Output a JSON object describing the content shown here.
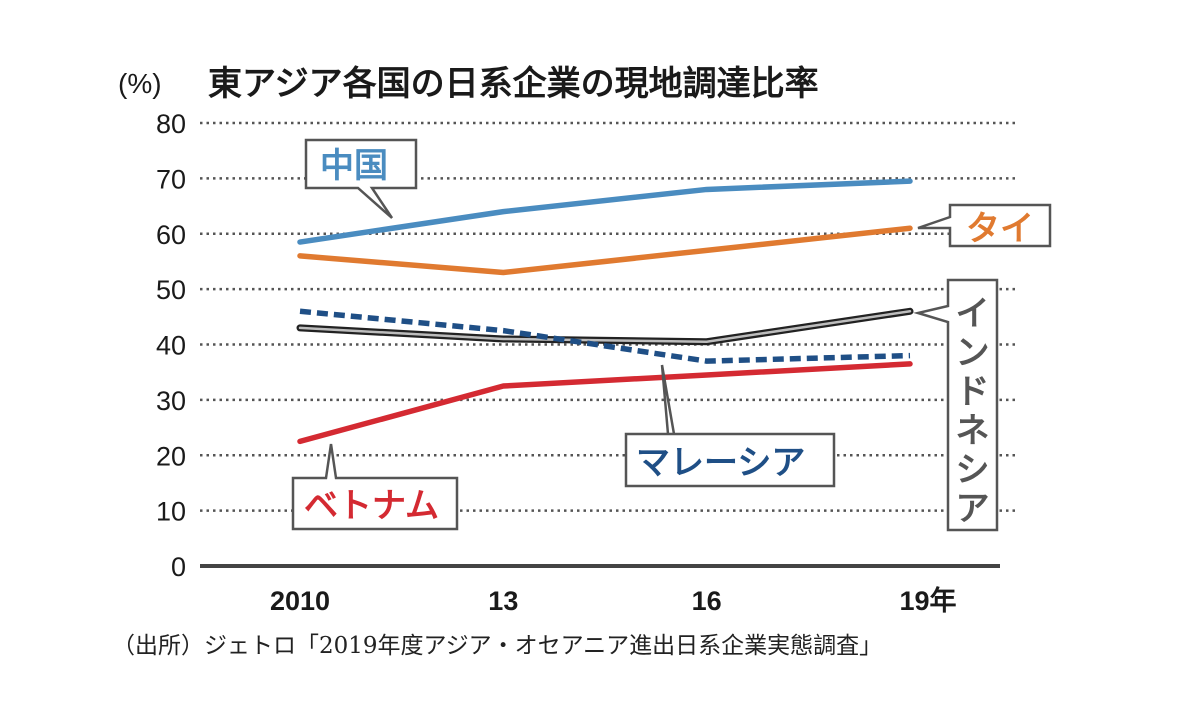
{
  "chart_data": {
    "type": "line",
    "title": "東アジア各国の日系企業の現地調達比率",
    "ylabel": "(%)",
    "xlabel": "",
    "ylim": [
      0,
      80
    ],
    "yticks": [
      0,
      10,
      20,
      30,
      40,
      50,
      60,
      70,
      80
    ],
    "ytick_labels": [
      "0",
      "10",
      "20",
      "30",
      "40",
      "50",
      "60",
      "70",
      "80"
    ],
    "x": [
      2010,
      2013,
      2016,
      2019
    ],
    "xtick_labels": [
      "2010",
      "13",
      "16",
      "19年"
    ],
    "grid": true,
    "grid_style": "dotted horizontal",
    "legend": "inline callouts",
    "series": [
      {
        "key": "china",
        "name": "中国",
        "color": "#4a8cc0",
        "style": "solid",
        "values": [
          58.5,
          64,
          68,
          69.5
        ]
      },
      {
        "key": "thailand",
        "name": "タイ",
        "color": "#e07a30",
        "style": "solid",
        "values": [
          56,
          53,
          57,
          61
        ]
      },
      {
        "key": "indonesia",
        "name": "インドネシア",
        "color": "#333333",
        "style": "outlined",
        "values": [
          43,
          41,
          40.5,
          46
        ]
      },
      {
        "key": "malaysia",
        "name": "マレーシア",
        "color": "#1f4f86",
        "style": "dashed",
        "values": [
          46,
          42.5,
          37,
          38
        ]
      },
      {
        "key": "vietnam",
        "name": "ベトナム",
        "color": "#d42a32",
        "style": "solid",
        "values": [
          22.5,
          32.5,
          34.5,
          36.5
        ]
      }
    ],
    "source": "（出所）ジェトロ「2019年度アジア・オセアニア進出日系企業実態調査」"
  },
  "labels": {
    "china": "中国",
    "thailand": "タイ",
    "indonesia": [
      "イ",
      "ン",
      "ド",
      "ネ",
      "シ",
      "ア"
    ],
    "malaysia": "マレーシア",
    "vietnam": "ベトナム"
  }
}
